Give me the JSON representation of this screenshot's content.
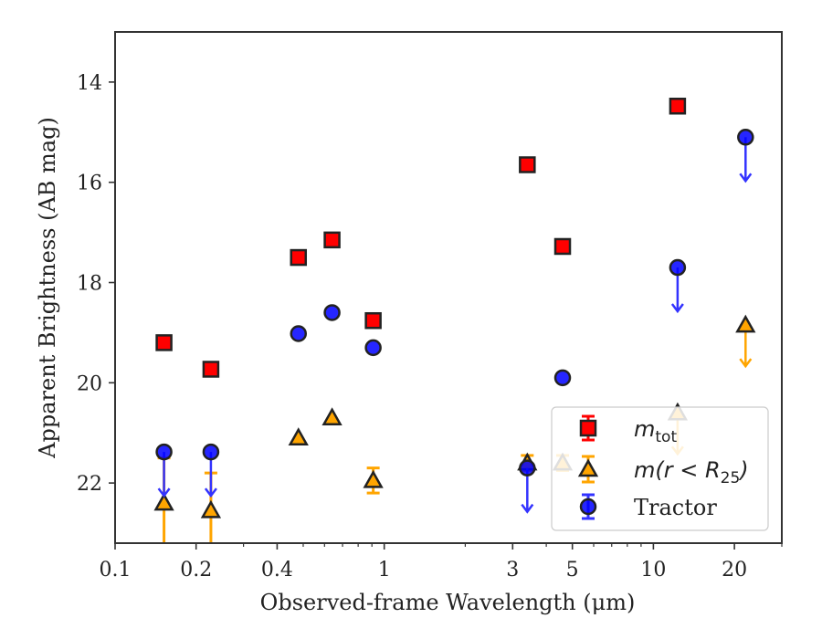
{
  "chart_data": {
    "type": "scatter",
    "title": "",
    "xlabel": "Observed-frame Wavelength (μm)",
    "ylabel": "Apparent Brightness (AB mag)",
    "xscale": "log",
    "yaxis_inverted": true,
    "xlim": [
      0.1,
      30
    ],
    "ylim": [
      13,
      23.2
    ],
    "x_ticks": [
      {
        "value": 0.1,
        "label": "0.1"
      },
      {
        "value": 0.2,
        "label": "0.2"
      },
      {
        "value": 0.4,
        "label": "0.4"
      },
      {
        "value": 1,
        "label": "1"
      },
      {
        "value": 3,
        "label": "3"
      },
      {
        "value": 5,
        "label": "5"
      },
      {
        "value": 10,
        "label": "10"
      },
      {
        "value": 20,
        "label": "20"
      }
    ],
    "y_ticks": [
      {
        "value": 14,
        "label": "14"
      },
      {
        "value": 16,
        "label": "16"
      },
      {
        "value": 18,
        "label": "18"
      },
      {
        "value": 20,
        "label": "20"
      },
      {
        "value": 22,
        "label": "22"
      }
    ],
    "grid": false,
    "legend_position": "bottom-right",
    "series": [
      {
        "name": "m_tot",
        "legend_main": "m",
        "legend_sub": "tot",
        "marker": "square",
        "color": "#ff0000",
        "edge_color": "#222222",
        "points": [
          {
            "x": 0.152,
            "y": 19.2
          },
          {
            "x": 0.227,
            "y": 19.73
          },
          {
            "x": 0.48,
            "y": 17.5
          },
          {
            "x": 0.64,
            "y": 17.15
          },
          {
            "x": 0.91,
            "y": 18.76
          },
          {
            "x": 3.4,
            "y": 15.65
          },
          {
            "x": 4.6,
            "y": 17.28
          },
          {
            "x": 12.3,
            "y": 14.48
          }
        ]
      },
      {
        "name": "m(r < R25)",
        "legend_main": "m(r < R",
        "legend_sub": "25",
        "legend_tail": ")",
        "marker": "triangle",
        "color": "#ffa500",
        "edge_color": "#222222",
        "points": [
          {
            "x": 0.152,
            "y": 22.4,
            "err": 0.9,
            "upper_limit": false
          },
          {
            "x": 0.227,
            "y": 22.55,
            "err": 0.75,
            "upper_limit": false
          },
          {
            "x": 0.48,
            "y": 21.1,
            "err": 0,
            "upper_limit": false
          },
          {
            "x": 0.64,
            "y": 20.7,
            "err": 0,
            "upper_limit": false
          },
          {
            "x": 0.91,
            "y": 21.95,
            "err": 0.25,
            "upper_limit": false
          },
          {
            "x": 3.4,
            "y": 21.6,
            "err": 0.15,
            "upper_limit": false
          },
          {
            "x": 4.6,
            "y": 21.6,
            "err": 0.15,
            "upper_limit": false
          },
          {
            "x": 12.3,
            "y": 20.6,
            "err": 0,
            "upper_limit": true
          },
          {
            "x": 22,
            "y": 18.85,
            "err": 0,
            "upper_limit": true
          }
        ]
      },
      {
        "name": "Tractor",
        "legend_main": "Tractor",
        "marker": "circle",
        "color": "#0000ff",
        "edge_color": "#222222",
        "points": [
          {
            "x": 0.152,
            "y": 21.38,
            "upper_limit": true
          },
          {
            "x": 0.227,
            "y": 21.38,
            "upper_limit": true
          },
          {
            "x": 0.48,
            "y": 19.02,
            "upper_limit": false
          },
          {
            "x": 0.64,
            "y": 18.6,
            "upper_limit": false
          },
          {
            "x": 0.91,
            "y": 19.3,
            "upper_limit": false
          },
          {
            "x": 3.4,
            "y": 21.7,
            "upper_limit": true
          },
          {
            "x": 4.6,
            "y": 19.9,
            "upper_limit": false
          },
          {
            "x": 12.3,
            "y": 17.7,
            "upper_limit": true
          },
          {
            "x": 22,
            "y": 15.1,
            "upper_limit": true
          }
        ]
      }
    ]
  }
}
